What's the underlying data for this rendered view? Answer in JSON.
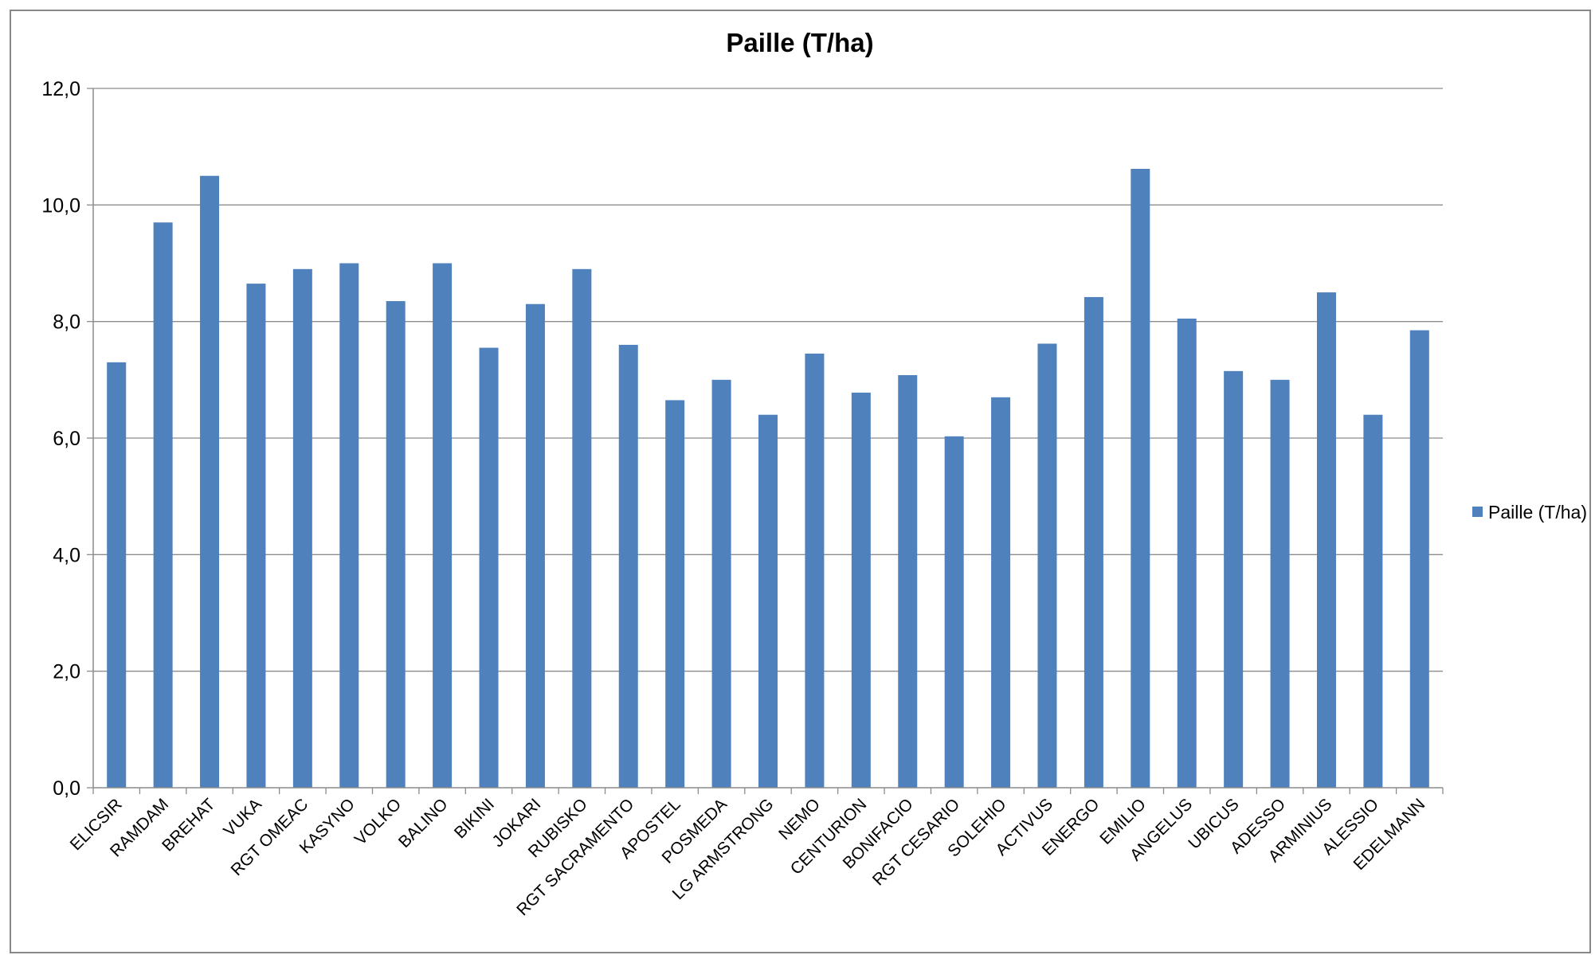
{
  "chart_data": {
    "type": "bar",
    "title": "Paille (T/ha)",
    "xlabel": "",
    "ylabel": "",
    "ylim": [
      0,
      12
    ],
    "y_tick_step": 2,
    "y_tick_labels": [
      "0,0",
      "2,0",
      "4,0",
      "6,0",
      "8,0",
      "10,0",
      "12,0"
    ],
    "grid": true,
    "legend_position": "right",
    "categories": [
      "ELICSIR",
      "RAMDAM",
      "BREHAT",
      "VUKA",
      "RGT OMEAC",
      "KASYNO",
      "VOLKO",
      "BALINO",
      "BIKINI",
      "JOKARI",
      "RUBISKO",
      "RGT SACRAMENTO",
      "APOSTEL",
      "POSMEDA",
      "LG ARMSTRONG",
      "NEMO",
      "CENTURION",
      "BONIFACIO",
      "RGT CESARIO",
      "SOLEHIO",
      "ACTIVUS",
      "ENERGO",
      "EMILIO",
      "ANGELUS",
      "UBICUS",
      "ADESSO",
      "ARMINIUS",
      "ALESSIO",
      "EDELMANN"
    ],
    "series": [
      {
        "name": "Paille (T/ha)",
        "color": "#4F81BD",
        "values": [
          7.3,
          9.7,
          10.5,
          8.65,
          8.9,
          9.0,
          8.35,
          9.0,
          7.55,
          8.3,
          8.9,
          7.6,
          6.65,
          7.0,
          6.4,
          7.45,
          6.78,
          7.08,
          6.03,
          6.7,
          7.62,
          8.42,
          10.62,
          8.05,
          7.15,
          7.0,
          8.5,
          6.4,
          7.85
        ]
      }
    ]
  }
}
